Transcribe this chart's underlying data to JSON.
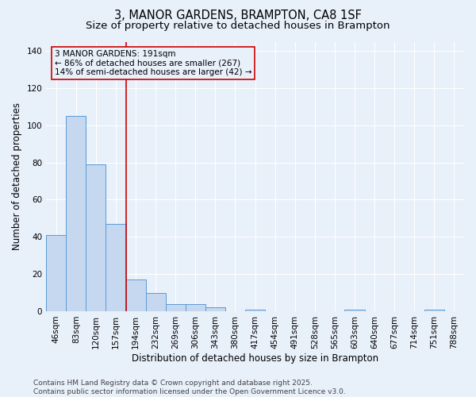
{
  "title": "3, MANOR GARDENS, BRAMPTON, CA8 1SF",
  "subtitle": "Size of property relative to detached houses in Brampton",
  "xlabel": "Distribution of detached houses by size in Brampton",
  "ylabel": "Number of detached properties",
  "categories": [
    "46sqm",
    "83sqm",
    "120sqm",
    "157sqm",
    "194sqm",
    "232sqm",
    "269sqm",
    "306sqm",
    "343sqm",
    "380sqm",
    "417sqm",
    "454sqm",
    "491sqm",
    "528sqm",
    "565sqm",
    "603sqm",
    "640sqm",
    "677sqm",
    "714sqm",
    "751sqm",
    "788sqm"
  ],
  "values": [
    41,
    105,
    79,
    47,
    17,
    10,
    4,
    4,
    2,
    0,
    1,
    0,
    0,
    0,
    0,
    1,
    0,
    0,
    0,
    1,
    0
  ],
  "bar_color": "#c5d8f0",
  "bar_edge_color": "#5b9bd5",
  "vline_color": "#cc0000",
  "vline_position": 3.5,
  "annotation_line1": "3 MANOR GARDENS: 191sqm",
  "annotation_line2": "← 86% of detached houses are smaller (267)",
  "annotation_line3": "14% of semi-detached houses are larger (42) →",
  "annotation_box_color": "#cc0000",
  "ylim": [
    0,
    145
  ],
  "yticks": [
    0,
    20,
    40,
    60,
    80,
    100,
    120,
    140
  ],
  "footer": "Contains HM Land Registry data © Crown copyright and database right 2025.\nContains public sector information licensed under the Open Government Licence v3.0.",
  "bg_color": "#e8f0fa",
  "grid_color": "#ffffff",
  "title_fontsize": 10.5,
  "subtitle_fontsize": 9.5,
  "axis_label_fontsize": 8.5,
  "tick_fontsize": 7.5,
  "annotation_fontsize": 7.5,
  "footer_fontsize": 6.5
}
